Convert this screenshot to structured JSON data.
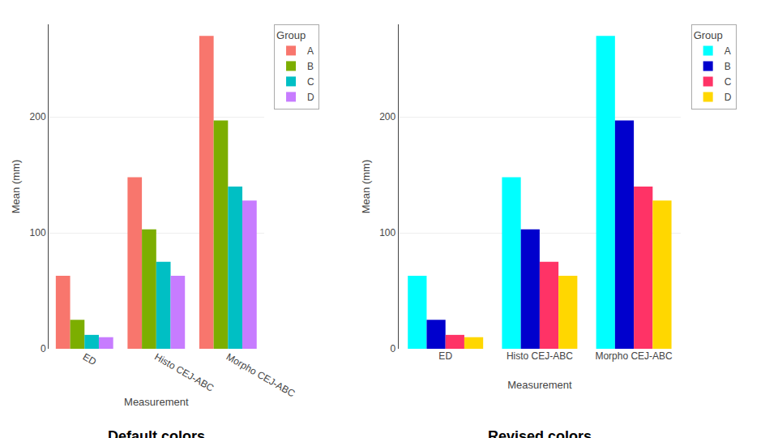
{
  "chart_data": [
    {
      "type": "bar",
      "title": "Default colors",
      "xlabel": "Measurement",
      "ylabel": "Mean (mm)",
      "legend_title": "Group",
      "categories": [
        "ED",
        "Histo CEJ-ABC",
        "Morpho CEJ-ABC"
      ],
      "series": [
        {
          "name": "A",
          "color": "#F8766D",
          "values": [
            63,
            148,
            270
          ]
        },
        {
          "name": "B",
          "color": "#7CAE00",
          "values": [
            25,
            103,
            197
          ]
        },
        {
          "name": "C",
          "color": "#00BFC4",
          "values": [
            12,
            75,
            140
          ]
        },
        {
          "name": "D",
          "color": "#C77CFF",
          "values": [
            10,
            63,
            128
          ]
        }
      ],
      "ylim": [
        0,
        280
      ],
      "yticks": [
        0,
        100,
        200
      ],
      "grid": true,
      "legend": "upper right"
    },
    {
      "type": "bar",
      "title": "Revised colors",
      "xlabel": "Measurement",
      "ylabel": "Mean (mm)",
      "legend_title": "Group",
      "categories": [
        "ED",
        "Histo CEJ-ABC",
        "Morpho CEJ-ABC"
      ],
      "series": [
        {
          "name": "A",
          "color": "#00FFFF",
          "values": [
            63,
            148,
            270
          ]
        },
        {
          "name": "B",
          "color": "#0000CD",
          "values": [
            25,
            103,
            197
          ]
        },
        {
          "name": "C",
          "color": "#FF3366",
          "values": [
            12,
            75,
            140
          ]
        },
        {
          "name": "D",
          "color": "#FFD700",
          "values": [
            10,
            63,
            128
          ]
        }
      ],
      "ylim": [
        0,
        280
      ],
      "yticks": [
        0,
        100,
        200
      ],
      "grid": true,
      "legend": "upper right"
    }
  ]
}
